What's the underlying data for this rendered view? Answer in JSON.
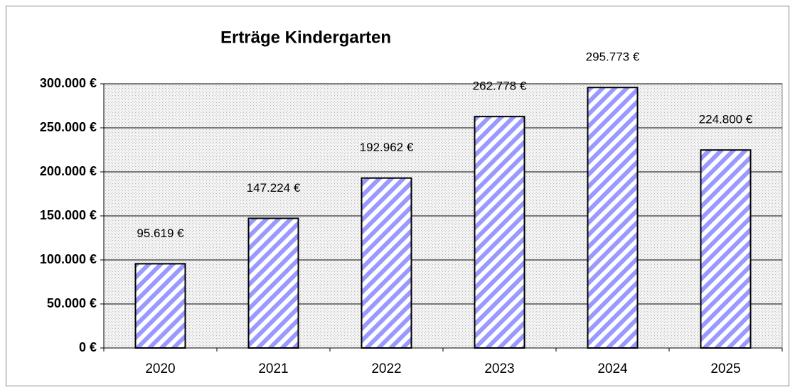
{
  "chart_data": {
    "type": "bar",
    "title": "Erträge  Kindergarten",
    "categories": [
      "2020",
      "2021",
      "2022",
      "2023",
      "2024",
      "2025"
    ],
    "values": [
      95619,
      147224,
      192962,
      262778,
      295773,
      224800
    ],
    "value_labels": [
      "95.619 €",
      "147.224 €",
      "192.962 €",
      "262.778 €",
      "295.773 €",
      "224.800 €"
    ],
    "color": "#9999ff",
    "ylim": [
      0,
      300000
    ],
    "yticks": [
      {
        "value": 0,
        "label": "0 €"
      },
      {
        "value": 50000,
        "label": "50.000 €"
      },
      {
        "value": 100000,
        "label": "100.000 €"
      },
      {
        "value": 150000,
        "label": "150.000 €"
      },
      {
        "value": 200000,
        "label": "200.000 €"
      },
      {
        "value": 250000,
        "label": "250.000 €"
      },
      {
        "value": 300000,
        "label": "300.000 €"
      }
    ],
    "grid": true
  }
}
